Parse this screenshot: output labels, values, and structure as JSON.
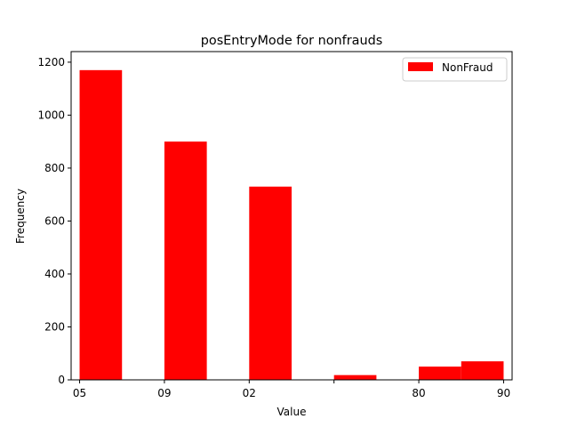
{
  "chart_data": {
    "type": "bar",
    "title": "posEntryMode for nonfrauds",
    "xlabel": "Value",
    "ylabel": "Frequency",
    "ylim": [
      0,
      1240
    ],
    "y_ticks": [
      0,
      200,
      400,
      600,
      800,
      1000,
      1200
    ],
    "x_range": [
      -0.2,
      10.2
    ],
    "x_ticks": [
      {
        "pos": 0,
        "label": "05"
      },
      {
        "pos": 2,
        "label": "09"
      },
      {
        "pos": 4,
        "label": "02"
      },
      {
        "pos": 6,
        "label": ""
      },
      {
        "pos": 8,
        "label": "80"
      },
      {
        "pos": 10,
        "label": "90"
      }
    ],
    "series": [
      {
        "name": "NonFraud",
        "color": "#ff0000",
        "bins": [
          {
            "x0": 0,
            "x1": 1,
            "value": 1170
          },
          {
            "x0": 2,
            "x1": 3,
            "value": 900
          },
          {
            "x0": 4,
            "x1": 5,
            "value": 730
          },
          {
            "x0": 6,
            "x1": 7,
            "value": 18
          },
          {
            "x0": 8,
            "x1": 9,
            "value": 50
          },
          {
            "x0": 9,
            "x1": 10,
            "value": 70
          }
        ]
      }
    ],
    "legend": "top-right",
    "grid": false
  }
}
